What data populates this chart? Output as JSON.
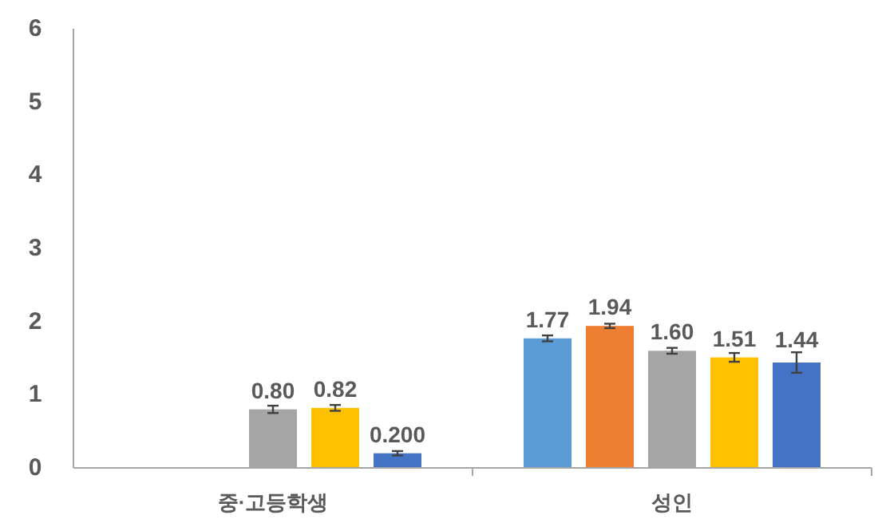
{
  "chart_data": {
    "type": "bar",
    "categories": [
      "중·고등학생",
      "성인"
    ],
    "ylim": [
      0,
      6
    ],
    "yticks": [
      0,
      1,
      2,
      3,
      4,
      5,
      6
    ],
    "grid": false,
    "series": [
      {
        "color": "#5b9bd5",
        "values": [
          null,
          1.77
        ],
        "errors": [
          null,
          0.04
        ],
        "value_labels": [
          null,
          "1.77"
        ]
      },
      {
        "color": "#ed7d31",
        "values": [
          null,
          1.94
        ],
        "errors": [
          null,
          0.03
        ],
        "value_labels": [
          null,
          "1.94"
        ]
      },
      {
        "color": "#a5a5a5",
        "values": [
          0.8,
          1.6
        ],
        "errors": [
          0.05,
          0.04
        ],
        "value_labels": [
          "0.80",
          "1.60"
        ]
      },
      {
        "color": "#ffc000",
        "values": [
          0.82,
          1.51
        ],
        "errors": [
          0.04,
          0.06
        ],
        "value_labels": [
          "0.82",
          "1.51"
        ]
      },
      {
        "color": "#4472c4",
        "values": [
          0.2,
          1.44
        ],
        "errors": [
          0.03,
          0.14
        ],
        "value_labels": [
          "0.200",
          "1.44"
        ]
      }
    ]
  }
}
